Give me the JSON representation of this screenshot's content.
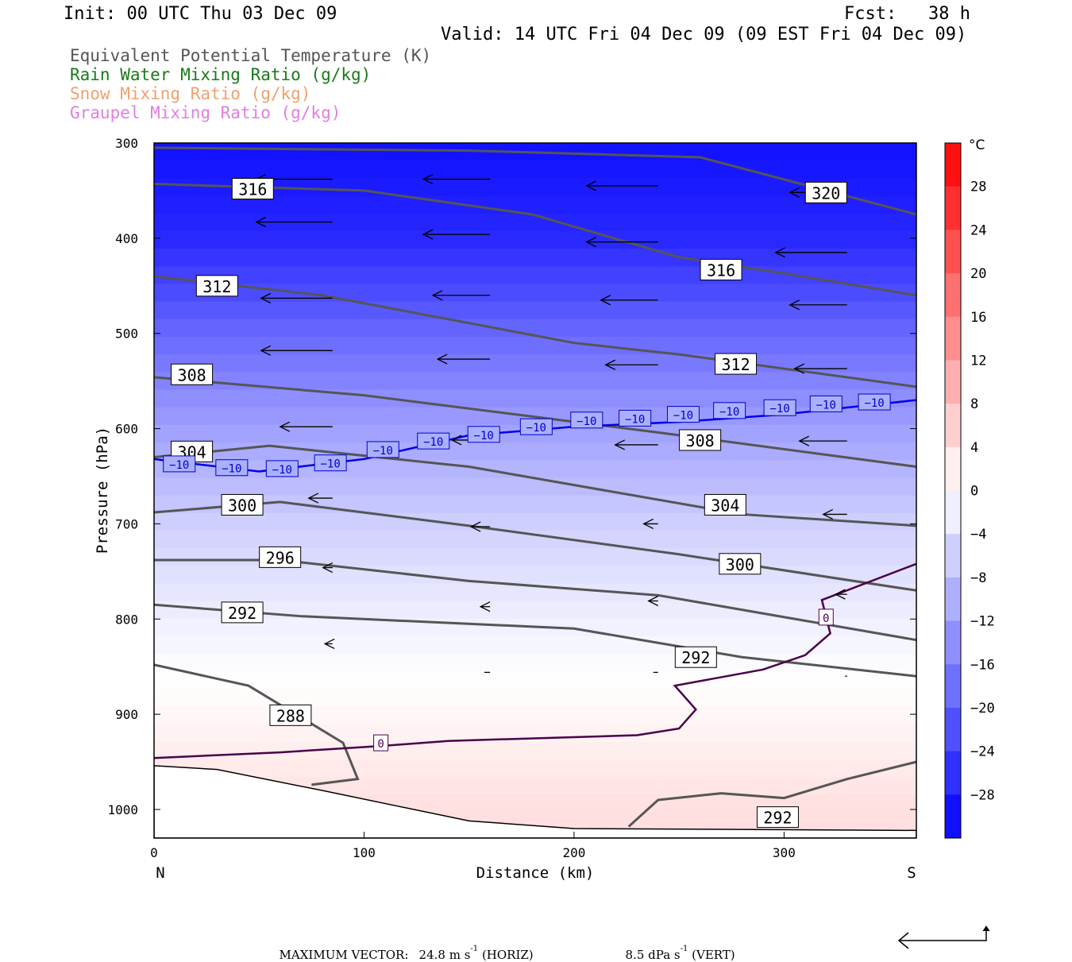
{
  "header": {
    "init": "Init: 00 UTC Thu 03 Dec 09",
    "fcst": "Fcst:   38 h",
    "valid": "Valid: 14 UTC Fri 04 Dec 09 (09 EST Fri 04 Dec 09)"
  },
  "legend": {
    "theta_e": "Equivalent Potential Temperature (K)",
    "rain": "Rain Water Mixing Ratio (g/kg)",
    "snow": "Snow Mixing Ratio (g/kg)",
    "graupel": "Graupel Mixing Ratio (g/kg)"
  },
  "colors": {
    "theta_e": "#555555",
    "rain": "#1a7a1a",
    "snow": "#f0a070",
    "graupel": "#e080e0",
    "zero_isotherm": "#4a004a",
    "minus10_isotherm": "#0000ee"
  },
  "footer": {
    "label": "MAXIMUM VECTOR:",
    "horiz_value": "24.8 m s",
    "horiz_sup": "-1",
    "horiz_unit": "(HORIZ)",
    "vert_value": "8.5 dPa s",
    "vert_sup": "-1",
    "vert_unit": "(VERT)"
  },
  "chart_data": {
    "type": "contour",
    "xlabel": "Distance (km)",
    "ylabel": "Pressure (hPa)",
    "x_left_label": "N",
    "x_right_label": "S",
    "xlim": [
      0,
      363
    ],
    "ylim": [
      1028,
      300
    ],
    "xticks": [
      0,
      100,
      200,
      300
    ],
    "yticks": [
      300,
      400,
      500,
      600,
      700,
      800,
      900,
      1000
    ],
    "colorbar": {
      "unit": "°C",
      "ticks": [
        28,
        24,
        20,
        16,
        12,
        8,
        4,
        0,
        -4,
        -8,
        -12,
        -16,
        -20,
        -24,
        -28
      ],
      "range": [
        -32,
        32
      ]
    },
    "theta_e_contours": [
      {
        "value": 320,
        "points": [
          [
            0,
            305
          ],
          [
            150,
            308
          ],
          [
            260,
            315
          ],
          [
            363,
            375
          ]
        ],
        "labels": [
          [
            320,
            352
          ]
        ]
      },
      {
        "value": 316,
        "points": [
          [
            0,
            343
          ],
          [
            100,
            350
          ],
          [
            180,
            375
          ],
          [
            250,
            420
          ],
          [
            300,
            437
          ],
          [
            363,
            460
          ]
        ],
        "labels": [
          [
            47,
            348
          ],
          [
            270,
            433
          ]
        ]
      },
      {
        "value": 312,
        "points": [
          [
            0,
            440
          ],
          [
            80,
            460
          ],
          [
            200,
            510
          ],
          [
            250,
            522
          ],
          [
            363,
            556
          ]
        ],
        "labels": [
          [
            30,
            450
          ],
          [
            277,
            532
          ]
        ]
      },
      {
        "value": 308,
        "points": [
          [
            0,
            546
          ],
          [
            100,
            565
          ],
          [
            240,
            604
          ],
          [
            363,
            640
          ]
        ],
        "labels": [
          [
            18,
            543
          ],
          [
            260,
            612
          ]
        ]
      },
      {
        "value": 304,
        "points": [
          [
            0,
            630
          ],
          [
            55,
            618
          ],
          [
            150,
            640
          ],
          [
            280,
            690
          ],
          [
            363,
            702
          ]
        ],
        "labels": [
          [
            18,
            624
          ],
          [
            272,
            680
          ]
        ]
      },
      {
        "value": 300,
        "points": [
          [
            0,
            688
          ],
          [
            60,
            677
          ],
          [
            150,
            702
          ],
          [
            250,
            732
          ],
          [
            363,
            770
          ]
        ],
        "labels": [
          [
            42,
            680
          ],
          [
            279,
            742
          ]
        ]
      },
      {
        "value": 296,
        "points": [
          [
            0,
            738
          ],
          [
            60,
            738
          ],
          [
            150,
            760
          ],
          [
            240,
            775
          ],
          [
            363,
            822
          ]
        ],
        "labels": [
          [
            60,
            735
          ]
        ]
      },
      {
        "value": 292,
        "points": [
          [
            0,
            785
          ],
          [
            70,
            797
          ],
          [
            200,
            810
          ],
          [
            280,
            840
          ],
          [
            363,
            860
          ]
        ],
        "labels": [
          [
            42,
            793
          ],
          [
            258,
            840
          ]
        ]
      },
      {
        "value": 288,
        "points": [
          [
            0,
            848
          ],
          [
            45,
            870
          ],
          [
            90,
            930
          ],
          [
            97,
            968
          ],
          [
            75,
            974
          ]
        ],
        "labels": [
          [
            65,
            901
          ]
        ]
      },
      {
        "value": 292,
        "points": [
          [
            226,
            1018
          ],
          [
            240,
            990
          ],
          [
            270,
            983
          ],
          [
            300,
            988
          ],
          [
            330,
            968
          ],
          [
            363,
            950
          ]
        ],
        "labels": [
          [
            297,
            1008
          ]
        ]
      }
    ],
    "isotherm_0C": {
      "value": 0,
      "points": [
        [
          0,
          946
        ],
        [
          60,
          940
        ],
        [
          110,
          933
        ],
        [
          140,
          928
        ],
        [
          230,
          922
        ],
        [
          250,
          915
        ],
        [
          258,
          895
        ],
        [
          248,
          870
        ],
        [
          290,
          853
        ],
        [
          310,
          838
        ],
        [
          322,
          815
        ],
        [
          318,
          780
        ],
        [
          363,
          742
        ]
      ],
      "labels": [
        [
          108,
          930
        ],
        [
          320,
          798
        ]
      ]
    },
    "isotherm_minus10C": {
      "value": -10,
      "points": [
        [
          0,
          632
        ],
        [
          50,
          645
        ],
        [
          100,
          632
        ],
        [
          150,
          607
        ],
        [
          200,
          598
        ],
        [
          250,
          593
        ],
        [
          300,
          585
        ],
        [
          363,
          570
        ]
      ],
      "labels": [
        [
          12,
          637
        ],
        [
          37,
          641
        ],
        [
          61,
          642
        ],
        [
          84,
          636
        ],
        [
          109,
          622
        ],
        [
          133,
          613
        ],
        [
          157,
          606
        ],
        [
          182,
          598
        ],
        [
          206,
          591
        ],
        [
          229,
          589
        ],
        [
          252,
          585
        ],
        [
          274,
          581
        ],
        [
          298,
          578
        ],
        [
          320,
          574
        ],
        [
          343,
          572
        ]
      ]
    },
    "terrain_surface": {
      "points": [
        [
          0,
          954
        ],
        [
          30,
          958
        ],
        [
          80,
          980
        ],
        [
          150,
          1012
        ],
        [
          200,
          1020
        ],
        [
          363,
          1022
        ]
      ]
    },
    "temperature_field": [
      {
        "p": 300,
        "c": -30
      },
      {
        "p": 400,
        "c": -27
      },
      {
        "p": 500,
        "c": -19
      },
      {
        "p": 600,
        "c": -12
      },
      {
        "p": 700,
        "c": -6
      },
      {
        "p": 800,
        "c": -2
      },
      {
        "p": 900,
        "c": 1
      },
      {
        "p": 1000,
        "c": 4
      }
    ],
    "wind_vectors": [
      {
        "x": 85,
        "p": 338,
        "u": -80,
        "w": 0
      },
      {
        "x": 85,
        "p": 383,
        "u": -80,
        "w": 0
      },
      {
        "x": 85,
        "p": 463,
        "u": -75,
        "w": 0
      },
      {
        "x": 85,
        "p": 518,
        "u": -75,
        "w": 0
      },
      {
        "x": 85,
        "p": 598,
        "u": -55,
        "w": 0
      },
      {
        "x": 85,
        "p": 673,
        "u": -25,
        "w": 0
      },
      {
        "x": 85,
        "p": 746,
        "u": -10,
        "w": 0
      },
      {
        "x": 85,
        "p": 826,
        "u": -8,
        "w": 0
      },
      {
        "x": 160,
        "p": 338,
        "u": -70,
        "w": 0
      },
      {
        "x": 160,
        "p": 396,
        "u": -70,
        "w": 0
      },
      {
        "x": 160,
        "p": 460,
        "u": -60,
        "w": 0
      },
      {
        "x": 160,
        "p": 527,
        "u": -55,
        "w": 0
      },
      {
        "x": 160,
        "p": 612,
        "u": -40,
        "w": 0
      },
      {
        "x": 160,
        "p": 703,
        "u": -20,
        "w": 0
      },
      {
        "x": 160,
        "p": 787,
        "u": -10,
        "w": 0
      },
      {
        "x": 160,
        "p": 856,
        "u": -6,
        "w": 0
      },
      {
        "x": 240,
        "p": 345,
        "u": -75,
        "w": 0
      },
      {
        "x": 240,
        "p": 404,
        "u": -75,
        "w": 0
      },
      {
        "x": 240,
        "p": 465,
        "u": -60,
        "w": 0
      },
      {
        "x": 240,
        "p": 533,
        "u": -55,
        "w": 0
      },
      {
        "x": 240,
        "p": 617,
        "u": -45,
        "w": 0
      },
      {
        "x": 240,
        "p": 700,
        "u": -15,
        "w": 0
      },
      {
        "x": 240,
        "p": 781,
        "u": -10,
        "w": 0
      },
      {
        "x": 240,
        "p": 856,
        "u": -5,
        "w": 0
      },
      {
        "x": 330,
        "p": 352,
        "u": -60,
        "w": 0
      },
      {
        "x": 330,
        "p": 415,
        "u": -75,
        "w": 0
      },
      {
        "x": 330,
        "p": 470,
        "u": -60,
        "w": 0
      },
      {
        "x": 330,
        "p": 537,
        "u": -55,
        "w": 0
      },
      {
        "x": 330,
        "p": 613,
        "u": -50,
        "w": 0
      },
      {
        "x": 330,
        "p": 690,
        "u": -25,
        "w": 0
      },
      {
        "x": 330,
        "p": 774,
        "u": -12,
        "w": 0
      },
      {
        "x": 330,
        "p": 860,
        "u": -2,
        "w": 0
      }
    ]
  }
}
